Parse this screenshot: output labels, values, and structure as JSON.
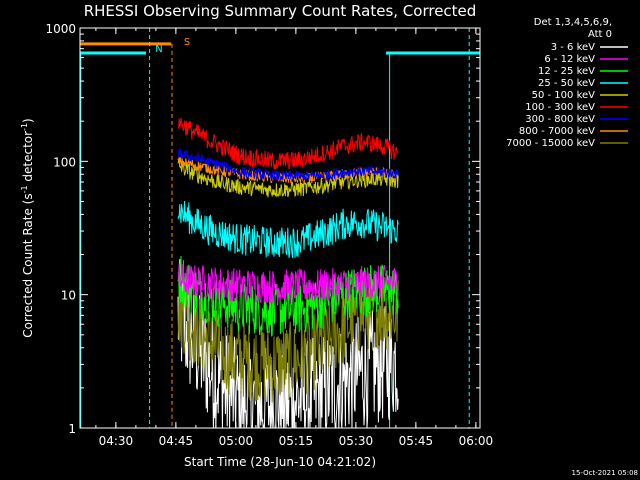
{
  "chart_data": {
    "type": "line",
    "title": "RHESSI Observing Summary Count Rates, Corrected",
    "xlabel": "Start Time (28-Jun-10 04:21:02)",
    "ylabel_parts": [
      "Corrected Count Rate (s",
      "-1",
      " detector",
      "-1",
      ")"
    ],
    "x_unit": "minutes after 04:21:02",
    "xlim": [
      0,
      100
    ],
    "ylim": [
      1,
      1000
    ],
    "y_scale": "log",
    "x_ticks": [
      {
        "label": "04:30",
        "value": 8.97
      },
      {
        "label": "04:45",
        "value": 23.97
      },
      {
        "label": "05:00",
        "value": 38.97
      },
      {
        "label": "05:15",
        "value": 53.97
      },
      {
        "label": "05:30",
        "value": 68.97
      },
      {
        "label": "05:45",
        "value": 83.97
      },
      {
        "label": "06:00",
        "value": 98.97
      }
    ],
    "y_ticks": [
      {
        "label": "1",
        "value": 1
      },
      {
        "label": "10",
        "value": 10
      },
      {
        "label": "100",
        "value": 100
      },
      {
        "label": "1000",
        "value": 1000
      }
    ],
    "legend": {
      "header": [
        "Det 1,3,4,5,6,9,",
        "Att 0"
      ],
      "placement": "right, outside plot"
    },
    "annotations": {
      "flag_N": "N",
      "flag_S": "S",
      "timestamp": "15-Oct-2021 05:08"
    },
    "flags": {
      "night_bar": {
        "x_start": 0,
        "x_end": 16.5,
        "y": 650,
        "color": "#00ffff"
      },
      "night_bar_2": {
        "x_start": 76.5,
        "x_end": 100,
        "y": 650,
        "color": "#00ffff"
      },
      "saa_bar": {
        "x_start": 0,
        "x_end": 22.8,
        "y": 760,
        "color": "#ff8c00"
      },
      "night_lines": [
        {
          "x": 17.4
        },
        {
          "x": 97.3
        }
      ],
      "day_lines_solid": [
        {
          "x": 0.2
        },
        {
          "x": 77.4
        }
      ],
      "saa_line": {
        "x": 23.0
      }
    },
    "series": [
      {
        "name": "3 - 6 keV",
        "color": "#ffffff",
        "x_start": 24.5,
        "x_end": 79.6,
        "keypoints": [
          [
            24.5,
            7
          ],
          [
            28,
            4.5
          ],
          [
            32,
            3
          ],
          [
            36,
            2
          ],
          [
            40,
            1.6
          ],
          [
            46,
            1.5
          ],
          [
            52,
            1.6
          ],
          [
            58,
            1.7
          ],
          [
            64,
            2.1
          ],
          [
            70,
            2.6
          ],
          [
            76,
            3.0
          ],
          [
            79.6,
            3.2
          ]
        ],
        "noise": 0.45
      },
      {
        "name": "6 - 12 keV",
        "color": "#ff00ff",
        "x_start": 24.5,
        "x_end": 79.6,
        "keypoints": [
          [
            24.5,
            13
          ],
          [
            30,
            12.5
          ],
          [
            40,
            11.8
          ],
          [
            50,
            11.5
          ],
          [
            60,
            11.6
          ],
          [
            70,
            12.2
          ],
          [
            79.6,
            12.5
          ]
        ],
        "noise": 0.13
      },
      {
        "name": "12 - 25 keV",
        "color": "#00ff00",
        "x_start": 24.5,
        "x_end": 79.6,
        "keypoints": [
          [
            24.5,
            14
          ],
          [
            28,
            11
          ],
          [
            34,
            9
          ],
          [
            40,
            8
          ],
          [
            48,
            7.6
          ],
          [
            55,
            7.8
          ],
          [
            62,
            9
          ],
          [
            68,
            10.5
          ],
          [
            74,
            11
          ],
          [
            79.6,
            10.5
          ]
        ],
        "noise": 0.2
      },
      {
        "name": "25 - 50 keV",
        "color": "#00ffff",
        "x_start": 24.5,
        "x_end": 79.6,
        "keypoints": [
          [
            24.5,
            44
          ],
          [
            28,
            36
          ],
          [
            33,
            30
          ],
          [
            40,
            26
          ],
          [
            48,
            24.5
          ],
          [
            55,
            25
          ],
          [
            61,
            29
          ],
          [
            66,
            34
          ],
          [
            70,
            35
          ],
          [
            74,
            33
          ],
          [
            79.6,
            30
          ]
        ],
        "noise": 0.12
      },
      {
        "name": "50 - 100 keV",
        "color": "#cccc00",
        "x_start": 24.5,
        "x_end": 79.6,
        "keypoints": [
          [
            24.5,
            93
          ],
          [
            28,
            82
          ],
          [
            34,
            70
          ],
          [
            40,
            64
          ],
          [
            48,
            61
          ],
          [
            55,
            62
          ],
          [
            62,
            67
          ],
          [
            68,
            72
          ],
          [
            74,
            74
          ],
          [
            79.6,
            72
          ]
        ],
        "noise": 0.06
      },
      {
        "name": "100 - 300 keV",
        "color": "#ff0000",
        "x_start": 24.5,
        "x_end": 79.6,
        "keypoints": [
          [
            24.5,
            200
          ],
          [
            28,
            170
          ],
          [
            34,
            135
          ],
          [
            40,
            110
          ],
          [
            48,
            100
          ],
          [
            55,
            102
          ],
          [
            61,
            115
          ],
          [
            66,
            130
          ],
          [
            71,
            140
          ],
          [
            76,
            130
          ],
          [
            79.6,
            115
          ]
        ],
        "noise": 0.07
      },
      {
        "name": "300 - 800 keV",
        "color": "#0000ff",
        "x_start": 24.5,
        "x_end": 79.6,
        "keypoints": [
          [
            24.5,
            115
          ],
          [
            28,
            108
          ],
          [
            34,
            95
          ],
          [
            40,
            84
          ],
          [
            48,
            78
          ],
          [
            55,
            77
          ],
          [
            62,
            80
          ],
          [
            68,
            84
          ],
          [
            74,
            84
          ],
          [
            79.6,
            80
          ]
        ],
        "noise": 0.04
      },
      {
        "name": "800 - 7000 keV",
        "color": "#ff8c00",
        "x_start": 24.5,
        "x_end": 79.6,
        "keypoints": [
          [
            24.5,
            100
          ],
          [
            28,
            95
          ],
          [
            34,
            86
          ],
          [
            40,
            80
          ],
          [
            48,
            75
          ],
          [
            55,
            74
          ],
          [
            62,
            77
          ],
          [
            68,
            82
          ],
          [
            74,
            83
          ],
          [
            79.6,
            78
          ]
        ],
        "noise": 0.04
      },
      {
        "name": "7000 - 15000 keV",
        "color": "#808000",
        "x_start": 24.5,
        "x_end": 79.6,
        "keypoints": [
          [
            24.5,
            8
          ],
          [
            28,
            6
          ],
          [
            32,
            4.5
          ],
          [
            36,
            3.6
          ],
          [
            42,
            3.2
          ],
          [
            48,
            3.0
          ],
          [
            54,
            3.2
          ],
          [
            60,
            4.0
          ],
          [
            65,
            5.5
          ],
          [
            70,
            7
          ],
          [
            74,
            8
          ],
          [
            79.6,
            7
          ]
        ],
        "noise": 0.3
      }
    ]
  }
}
